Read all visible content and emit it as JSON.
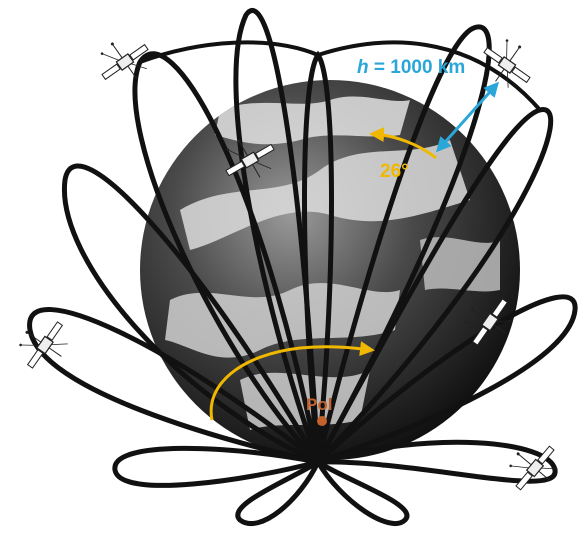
{
  "labels": {
    "altitude_var": "h",
    "altitude_rest": " = 1000 km",
    "angle": "26°",
    "pole": "Pol"
  },
  "colors": {
    "altitude": "#2aa6d8",
    "angle_arrow": "#f0b800",
    "pole": "#c4622d",
    "orbit": "#111111",
    "earth_dark": "#1a1a1a",
    "earth_cloud": "#e8e8e8"
  },
  "icons": [
    "satellite-icon",
    "pole-marker-icon"
  ]
}
